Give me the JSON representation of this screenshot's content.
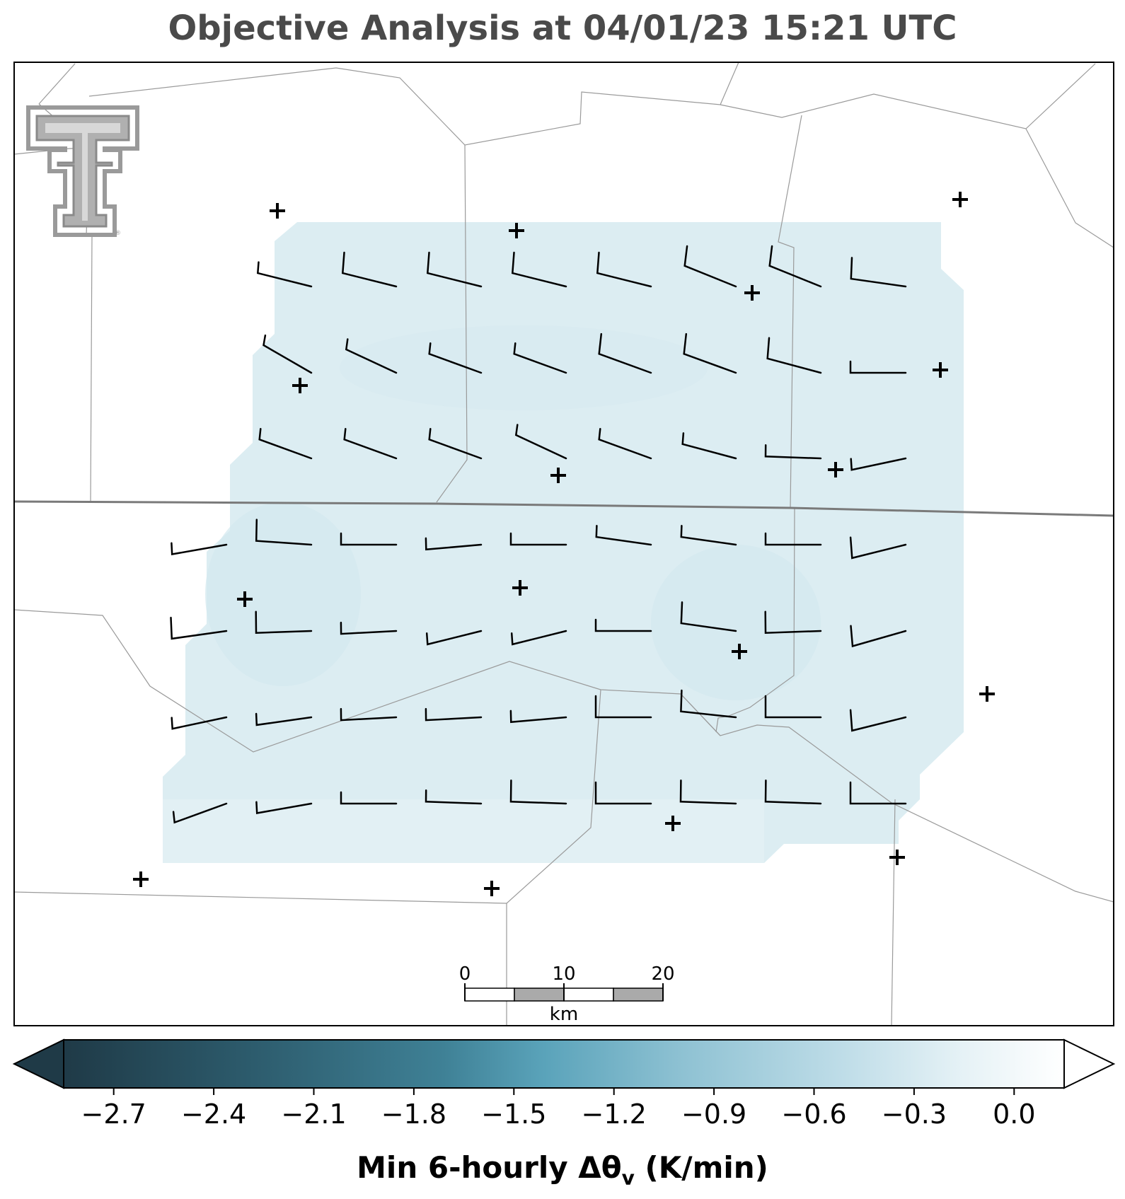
{
  "title": "Objective Analysis at 04/01/23 15:21 UTC",
  "colorbar": {
    "label_main": "Min 6-hourly Δθ",
    "label_sub": "v",
    "label_unit": " (K/min)",
    "ticks": [
      "−2.7",
      "−2.4",
      "−2.1",
      "−1.8",
      "−1.5",
      "−1.2",
      "−0.9",
      "−0.6",
      "−0.3",
      "0.0"
    ],
    "tick_values": [
      -2.7,
      -2.4,
      -2.1,
      -1.8,
      -1.5,
      -1.2,
      -0.9,
      -0.6,
      -0.3,
      0.0
    ],
    "range": [
      -2.85,
      0.15
    ],
    "colors_dark_to_light": [
      "#1f3a47",
      "#2c5a6b",
      "#3f8196",
      "#5aa3ba",
      "#9ccbda",
      "#cfe6ee",
      "#ffffff"
    ],
    "extend": "both"
  },
  "scalebar": {
    "ticks": [
      "0",
      "10",
      "20"
    ],
    "unit": "km"
  },
  "analysis_field": {
    "color": "#dcedf2",
    "approx_value": -0.4
  },
  "logo": {
    "name": "texas-tech-double-t-logo",
    "color": "#9a9a9a"
  }
}
